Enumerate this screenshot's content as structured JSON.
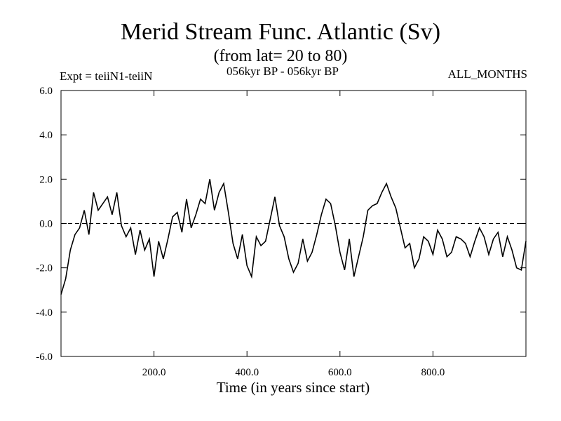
{
  "header": {
    "title": "Merid Stream Func. Atlantic (Sv)",
    "subtitle": "(from lat= 20 to 80)",
    "experiment": "Expt = teiiN1-teiiN",
    "period": "056kyr BP - 056kyr BP",
    "months": "ALL_MONTHS"
  },
  "chart_data": {
    "type": "line",
    "title": "Merid Stream Func. Atlantic (Sv)",
    "subtitle": "(from lat= 20 to 80)",
    "xlabel": "Time (in years since start)",
    "ylabel": "",
    "xlim": [
      0,
      1000
    ],
    "ylim": [
      -6,
      6
    ],
    "x_ticks": [
      200,
      400,
      600,
      800
    ],
    "x_tick_labels": [
      "200.0",
      "400.0",
      "600.0",
      "800.0"
    ],
    "y_ticks": [
      -6,
      -4,
      -2,
      0,
      2,
      4,
      6
    ],
    "y_tick_labels": [
      "-6.0",
      "-4.0",
      "-2.0",
      "0.0",
      "2.0",
      "4.0",
      "6.0"
    ],
    "zero_line": "dashed",
    "grid": false,
    "line_color": "#000000",
    "series": [
      {
        "x": [
          0,
          10,
          20,
          30,
          40,
          50,
          60,
          70,
          80,
          90,
          100,
          110,
          120,
          130,
          140,
          150,
          160,
          170,
          180,
          190,
          200,
          210,
          220,
          230,
          240,
          250,
          260,
          270,
          280,
          290,
          300,
          310,
          320,
          330,
          340,
          350,
          360,
          370,
          380,
          390,
          400,
          410,
          420,
          430,
          440,
          450,
          460,
          470,
          480,
          490,
          500,
          510,
          520,
          530,
          540,
          550,
          560,
          570,
          580,
          590,
          600,
          610,
          620,
          630,
          640,
          650,
          660,
          670,
          680,
          690,
          700,
          710,
          720,
          730,
          740,
          750,
          760,
          770,
          780,
          790,
          800,
          810,
          820,
          830,
          840,
          850,
          860,
          870,
          880,
          890,
          900,
          910,
          920,
          930,
          940,
          950,
          960,
          970,
          980,
          990,
          1000
        ],
        "values": [
          -3.2,
          -2.5,
          -1.2,
          -0.5,
          -0.2,
          0.6,
          -0.5,
          1.4,
          0.6,
          0.9,
          1.2,
          0.4,
          1.4,
          -0.1,
          -0.6,
          -0.2,
          -1.4,
          -0.3,
          -1.2,
          -0.7,
          -2.4,
          -0.8,
          -1.6,
          -0.7,
          0.3,
          0.5,
          -0.4,
          1.1,
          -0.2,
          0.4,
          1.1,
          0.9,
          2.0,
          0.6,
          1.4,
          1.8,
          0.5,
          -0.9,
          -1.6,
          -0.5,
          -1.9,
          -2.4,
          -0.6,
          -1.0,
          -0.8,
          0.2,
          1.2,
          -0.1,
          -0.6,
          -1.6,
          -2.2,
          -1.8,
          -0.7,
          -1.7,
          -1.3,
          -0.5,
          0.4,
          1.1,
          0.9,
          -0.1,
          -1.3,
          -2.1,
          -0.7,
          -2.4,
          -1.5,
          -0.6,
          0.6,
          0.8,
          0.9,
          1.4,
          1.8,
          1.2,
          0.7,
          -0.2,
          -1.1,
          -0.9,
          -2.0,
          -1.6,
          -0.6,
          -0.8,
          -1.4,
          -0.3,
          -0.7,
          -1.5,
          -1.3,
          -0.6,
          -0.7,
          -0.9,
          -1.5,
          -0.8,
          -0.2,
          -0.6,
          -1.4,
          -0.7,
          -0.4,
          -1.5,
          -0.6,
          -1.2,
          -2.0,
          -2.1,
          -0.8
        ]
      }
    ]
  }
}
